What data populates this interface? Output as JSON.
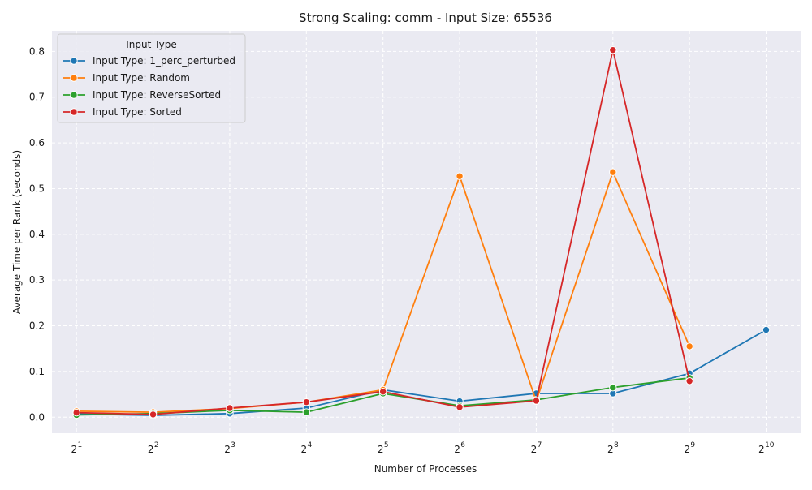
{
  "chart_data": {
    "type": "line",
    "title": "Strong Scaling: comm - Input Size: 65536",
    "xlabel": "Number of Processes",
    "ylabel": "Average Time per Rank (seconds)",
    "x_scale": "log2",
    "x": [
      2,
      4,
      8,
      16,
      32,
      64,
      128,
      256,
      512,
      1024
    ],
    "x_tick_labels": [
      {
        "base": "2",
        "exp": "1"
      },
      {
        "base": "2",
        "exp": "2"
      },
      {
        "base": "2",
        "exp": "3"
      },
      {
        "base": "2",
        "exp": "4"
      },
      {
        "base": "2",
        "exp": "5"
      },
      {
        "base": "2",
        "exp": "6"
      },
      {
        "base": "2",
        "exp": "7"
      },
      {
        "base": "2",
        "exp": "8"
      },
      {
        "base": "2",
        "exp": "9"
      },
      {
        "base": "2",
        "exp": "10"
      }
    ],
    "y_ticks": [
      "0.0",
      "0.1",
      "0.2",
      "0.3",
      "0.4",
      "0.5",
      "0.6",
      "0.7",
      "0.8"
    ],
    "y_tick_values": [
      0.0,
      0.1,
      0.2,
      0.3,
      0.4,
      0.5,
      0.6,
      0.7,
      0.8
    ],
    "ylim": [
      -0.035,
      0.845
    ],
    "grid": true,
    "legend": {
      "title": "Input Type",
      "placement": "top-left"
    },
    "series": [
      {
        "name": "Input Type: 1_perc_perturbed",
        "color": "#1f77b4",
        "x": [
          2,
          4,
          8,
          16,
          32,
          64,
          128,
          256,
          512,
          1024
        ],
        "values": [
          0.007,
          0.004,
          0.008,
          0.02,
          0.06,
          0.035,
          0.052,
          0.052,
          0.096,
          0.191
        ]
      },
      {
        "name": "Input Type: Random",
        "color": "#ff7f0e",
        "x": [
          2,
          4,
          8,
          16,
          32,
          64,
          128,
          256,
          512
        ],
        "values": [
          0.013,
          0.011,
          0.019,
          0.033,
          0.06,
          0.527,
          0.035,
          0.536,
          0.155
        ]
      },
      {
        "name": "Input Type: ReverseSorted",
        "color": "#2ca02c",
        "x": [
          2,
          4,
          8,
          16,
          32,
          64,
          128,
          256,
          512
        ],
        "values": [
          0.005,
          0.008,
          0.015,
          0.011,
          0.052,
          0.025,
          0.038,
          0.065,
          0.086
        ]
      },
      {
        "name": "Input Type: Sorted",
        "color": "#d62728",
        "x": [
          2,
          4,
          8,
          16,
          32,
          64,
          128,
          256,
          512
        ],
        "values": [
          0.01,
          0.006,
          0.02,
          0.033,
          0.056,
          0.022,
          0.036,
          0.803,
          0.079
        ]
      }
    ]
  }
}
